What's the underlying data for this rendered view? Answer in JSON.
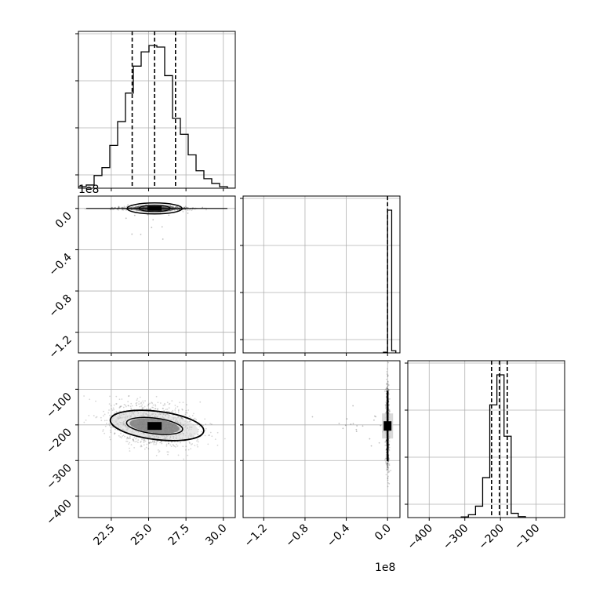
{
  "chart_data": {
    "type": "corner",
    "grid": true,
    "offset_text": {
      "y_row1": "1e8",
      "x_col1": "1e8"
    },
    "param0": {
      "axis_range": [
        20.3,
        30.8
      ],
      "tick_labels": [
        "22.5",
        "25.0",
        "27.5",
        "30.0"
      ],
      "hist_edges_start": 20.3,
      "hist_bin_width": 0.525,
      "hist_counts": [
        1,
        2,
        8,
        13,
        27,
        42,
        60,
        77,
        86,
        90,
        89,
        71,
        44,
        34,
        21,
        11,
        6,
        3,
        1,
        0
      ],
      "quantiles": [
        23.9,
        25.4,
        26.8
      ]
    },
    "param1": {
      "axis_range": [
        -1.4,
        0.12
      ],
      "tick_labels": [
        "-1.2",
        "-0.8",
        "-0.4",
        "0.0"
      ],
      "tick_values": [
        -1.2,
        -0.8,
        -0.4,
        0.0
      ],
      "hist_edges_start": -0.04,
      "hist_bin_width": 0.04,
      "hist_counts": [
        0.5,
        100,
        1.5
      ],
      "quantiles": [
        0.0
      ]
    },
    "param2": {
      "axis_range": [
        -460,
        -20
      ],
      "tick_labels": [
        "-400",
        "-300",
        "-200",
        "-100"
      ],
      "tick_values": [
        -400,
        -300,
        -200,
        -100
      ],
      "hist_edges_start": -310,
      "hist_bin_width": 20,
      "hist_counts": [
        0.5,
        2,
        8,
        28,
        79,
        100,
        57,
        3,
        0.7
      ],
      "quantiles": [
        -225,
        -203,
        -181
      ]
    },
    "scatter_center": {
      "p0": 25.4,
      "p1": -0.03,
      "p2": -203
    },
    "contour_levels": [
      0.39,
      0.86
    ]
  }
}
